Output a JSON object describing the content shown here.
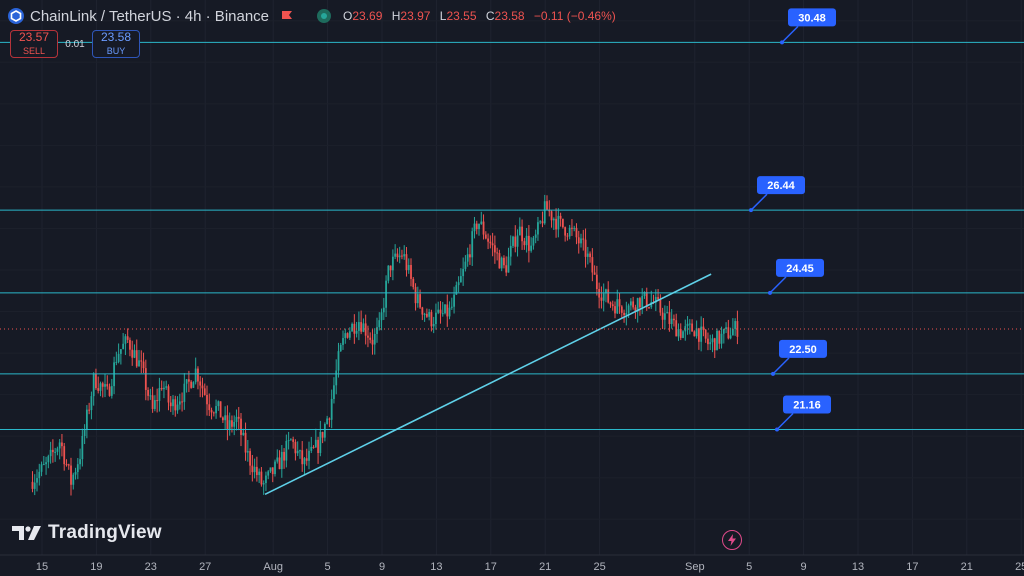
{
  "header": {
    "title": "ChainLink / TetherUS · 4h · Binance",
    "ohlc": [
      {
        "key": "O",
        "value": "23.69"
      },
      {
        "key": "H",
        "value": "23.97"
      },
      {
        "key": "L",
        "value": "23.55"
      },
      {
        "key": "C",
        "value": "23.58"
      },
      {
        "key": "",
        "value": "−0.11 (−0.46%)"
      }
    ]
  },
  "trade": {
    "sell_price": "23.57",
    "sell_label": "SELL",
    "spread": "0.01",
    "buy_price": "23.58",
    "buy_label": "BUY"
  },
  "brand": {
    "name": "TradingView"
  },
  "colors": {
    "background": "#161a25",
    "up": "#26a69a",
    "down": "#ef5350",
    "level_line": "#2bb7c9",
    "trend_line": "#5fd0e8",
    "callout": "#2962ff",
    "axis_text": "#b2b5be"
  },
  "chart_data": {
    "type": "candlestick",
    "title": "ChainLink / TetherUS · 4h · Binance",
    "ylim": [
      18.5,
      31.5
    ],
    "x_ticks": [
      "15",
      "19",
      "23",
      "27",
      "Aug",
      "5",
      "9",
      "13",
      "17",
      "21",
      "25",
      "Sep",
      "5",
      "9",
      "13",
      "17",
      "21",
      "25"
    ],
    "x_tick_day_index": [
      0,
      4,
      8,
      12,
      17,
      21,
      25,
      29,
      33,
      37,
      41,
      48,
      52,
      56,
      60,
      64,
      68,
      72
    ],
    "x_start_date": "Jul 15",
    "bars_per_day": 6,
    "last_price": 23.58,
    "grid": true,
    "horizontal_levels": [
      {
        "label": "30.48",
        "value": 30.48
      },
      {
        "label": "26.44",
        "value": 26.44
      },
      {
        "label": "24.45",
        "value": 24.45
      },
      {
        "label": "22.50",
        "value": 22.5
      },
      {
        "label": "21.16",
        "value": 21.16
      }
    ],
    "trend_line": {
      "from": {
        "day": 16.4,
        "price": 19.6
      },
      "to": {
        "day": 49.2,
        "price": 24.9
      }
    },
    "price_anchors": [
      {
        "day": -0.7,
        "price": 19.9
      },
      {
        "day": 0.5,
        "price": 20.3
      },
      {
        "day": 1.5,
        "price": 20.9
      },
      {
        "day": 2.3,
        "price": 19.9
      },
      {
        "day": 3.0,
        "price": 20.6
      },
      {
        "day": 4.0,
        "price": 22.4
      },
      {
        "day": 5.0,
        "price": 22.0
      },
      {
        "day": 5.7,
        "price": 23.0
      },
      {
        "day": 6.5,
        "price": 23.3
      },
      {
        "day": 7.5,
        "price": 22.6
      },
      {
        "day": 8.3,
        "price": 21.6
      },
      {
        "day": 9.0,
        "price": 22.3
      },
      {
        "day": 9.6,
        "price": 21.7
      },
      {
        "day": 10.7,
        "price": 22.1
      },
      {
        "day": 11.5,
        "price": 22.6
      },
      {
        "day": 12.4,
        "price": 21.8
      },
      {
        "day": 13.2,
        "price": 21.6
      },
      {
        "day": 13.8,
        "price": 21.2
      },
      {
        "day": 14.5,
        "price": 21.4
      },
      {
        "day": 15.2,
        "price": 20.6
      },
      {
        "day": 16.4,
        "price": 19.8
      },
      {
        "day": 17.5,
        "price": 20.3
      },
      {
        "day": 18.5,
        "price": 20.9
      },
      {
        "day": 19.4,
        "price": 20.3
      },
      {
        "day": 20.5,
        "price": 20.8
      },
      {
        "day": 21.3,
        "price": 21.6
      },
      {
        "day": 22.0,
        "price": 22.9
      },
      {
        "day": 22.5,
        "price": 23.5
      },
      {
        "day": 23.5,
        "price": 23.8
      },
      {
        "day": 24.5,
        "price": 23.3
      },
      {
        "day": 25.0,
        "price": 23.6
      },
      {
        "day": 25.7,
        "price": 25.1
      },
      {
        "day": 26.7,
        "price": 25.4
      },
      {
        "day": 27.7,
        "price": 24.3
      },
      {
        "day": 28.7,
        "price": 23.8
      },
      {
        "day": 30.2,
        "price": 24.0
      },
      {
        "day": 31.2,
        "price": 25.0
      },
      {
        "day": 32.2,
        "price": 26.2
      },
      {
        "day": 33.2,
        "price": 25.6
      },
      {
        "day": 34.2,
        "price": 25.0
      },
      {
        "day": 35.2,
        "price": 26.0
      },
      {
        "day": 36.2,
        "price": 25.5
      },
      {
        "day": 37.2,
        "price": 26.5
      },
      {
        "day": 38.2,
        "price": 26.1
      },
      {
        "day": 39.2,
        "price": 25.9
      },
      {
        "day": 40.2,
        "price": 25.4
      },
      {
        "day": 41.0,
        "price": 24.6
      },
      {
        "day": 42.0,
        "price": 24.2
      },
      {
        "day": 43.2,
        "price": 24.1
      },
      {
        "day": 44.2,
        "price": 24.3
      },
      {
        "day": 45.2,
        "price": 24.2
      },
      {
        "day": 46.2,
        "price": 23.8
      },
      {
        "day": 47.2,
        "price": 23.5
      },
      {
        "day": 48.2,
        "price": 23.6
      },
      {
        "day": 49.2,
        "price": 23.2
      },
      {
        "day": 50.2,
        "price": 23.4
      },
      {
        "day": 51.2,
        "price": 23.6
      }
    ]
  }
}
